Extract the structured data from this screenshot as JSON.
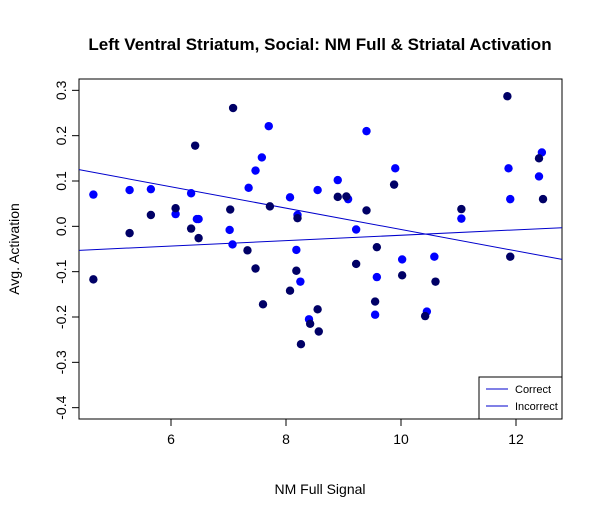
{
  "chart_data": {
    "type": "scatter",
    "title": "Left Ventral Striatum, Social: NM Full & Striatal Activation",
    "xlabel": "NM Full Signal",
    "ylabel": "Avg. Activation",
    "xlim": [
      4.4,
      12.8
    ],
    "ylim": [
      -0.425,
      0.325
    ],
    "xticks": [
      6,
      8,
      10,
      12
    ],
    "yticks": [
      -0.4,
      -0.3,
      -0.2,
      -0.1,
      0.0,
      0.1,
      0.2,
      0.3
    ],
    "ytick_labels": [
      "-0.4",
      "-0.3",
      "-0.2",
      "-0.1",
      "0.0",
      "0.1",
      "0.2",
      "0.3"
    ],
    "grid": false,
    "legend_position": "bottom-right",
    "series": [
      {
        "name": "Correct",
        "color": "#0000ff",
        "points": [
          [
            4.65,
            0.07
          ],
          [
            5.28,
            0.08
          ],
          [
            5.65,
            0.082
          ],
          [
            6.08,
            0.027
          ],
          [
            6.35,
            0.073
          ],
          [
            6.45,
            0.016
          ],
          [
            6.48,
            0.016
          ],
          [
            7.02,
            -0.008
          ],
          [
            7.07,
            -0.04
          ],
          [
            7.35,
            0.085
          ],
          [
            7.47,
            0.123
          ],
          [
            7.58,
            0.152
          ],
          [
            7.7,
            0.221
          ],
          [
            8.07,
            0.064
          ],
          [
            8.18,
            -0.052
          ],
          [
            8.2,
            0.025
          ],
          [
            8.25,
            -0.122
          ],
          [
            8.4,
            -0.205
          ],
          [
            8.55,
            0.08
          ],
          [
            8.9,
            0.102
          ],
          [
            9.08,
            0.06
          ],
          [
            9.22,
            -0.007
          ],
          [
            9.4,
            0.21
          ],
          [
            9.55,
            -0.195
          ],
          [
            9.58,
            -0.112
          ],
          [
            9.9,
            0.128
          ],
          [
            10.02,
            -0.073
          ],
          [
            10.45,
            -0.188
          ],
          [
            10.58,
            -0.067
          ],
          [
            11.05,
            0.017
          ],
          [
            11.87,
            0.128
          ],
          [
            11.9,
            0.06
          ],
          [
            12.4,
            0.11
          ],
          [
            12.45,
            0.163
          ]
        ],
        "fit": {
          "x": [
            4.4,
            12.8
          ],
          "y": [
            0.125,
            -0.073
          ]
        }
      },
      {
        "name": "Incorrect",
        "color": "#000066",
        "points": [
          [
            4.65,
            -0.117
          ],
          [
            5.28,
            -0.015
          ],
          [
            5.65,
            0.025
          ],
          [
            6.08,
            0.04
          ],
          [
            6.35,
            -0.005
          ],
          [
            6.42,
            0.178
          ],
          [
            6.48,
            -0.026
          ],
          [
            7.03,
            0.037
          ],
          [
            7.08,
            0.261
          ],
          [
            7.33,
            -0.053
          ],
          [
            7.47,
            -0.093
          ],
          [
            7.6,
            -0.172
          ],
          [
            7.72,
            0.044
          ],
          [
            8.07,
            -0.142
          ],
          [
            8.18,
            -0.098
          ],
          [
            8.2,
            0.018
          ],
          [
            8.26,
            -0.26
          ],
          [
            8.42,
            -0.215
          ],
          [
            8.55,
            -0.183
          ],
          [
            8.57,
            -0.232
          ],
          [
            8.9,
            0.065
          ],
          [
            9.05,
            0.066
          ],
          [
            9.22,
            -0.083
          ],
          [
            9.4,
            0.035
          ],
          [
            9.55,
            -0.166
          ],
          [
            9.58,
            -0.046
          ],
          [
            9.88,
            0.092
          ],
          [
            10.02,
            -0.108
          ],
          [
            10.42,
            -0.198
          ],
          [
            10.6,
            -0.122
          ],
          [
            11.05,
            0.038
          ],
          [
            11.85,
            0.287
          ],
          [
            11.9,
            -0.067
          ],
          [
            12.4,
            0.15
          ],
          [
            12.47,
            0.06
          ]
        ],
        "fit": {
          "x": [
            4.4,
            12.8
          ],
          "y": [
            -0.053,
            -0.003
          ]
        }
      }
    ]
  }
}
